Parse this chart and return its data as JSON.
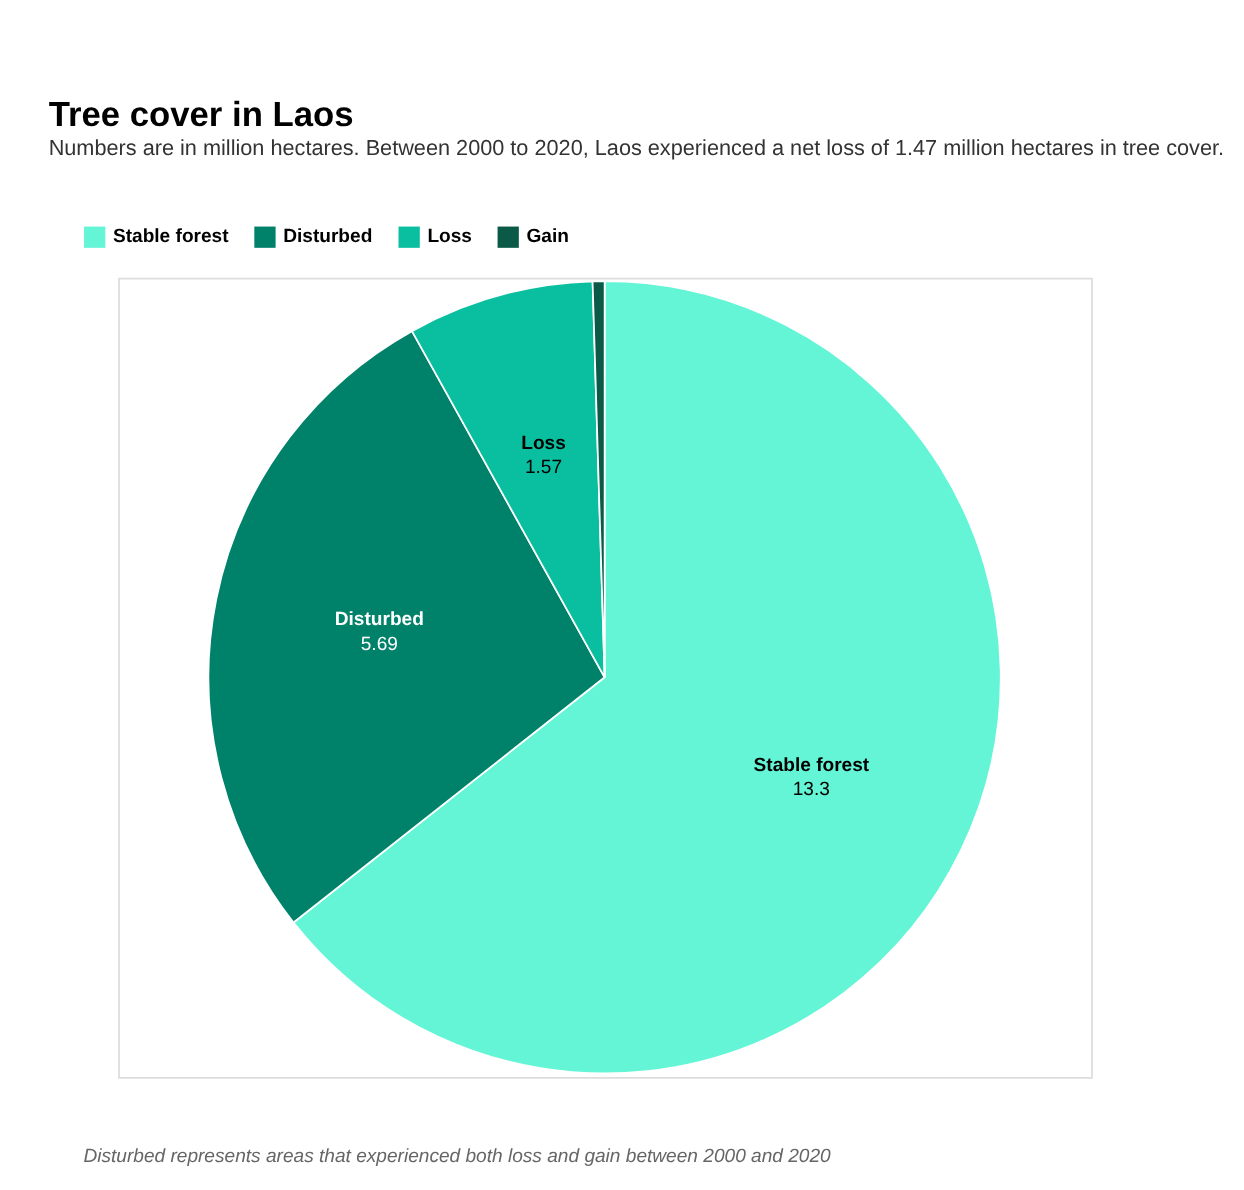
{
  "chart_data": {
    "type": "pie",
    "title": "Tree cover in Laos",
    "subtitle": "Numbers are in million hectares. Between 2000 to 2020, Laos experienced a net loss of 1.47 million hectares in tree cover.",
    "categories": [
      "Stable forest",
      "Disturbed",
      "Loss",
      "Gain"
    ],
    "values": [
      13.3,
      5.69,
      1.57,
      0.1
    ],
    "colors": [
      "#64f5d6",
      "#00826a",
      "#0abf9f",
      "#0a5a47"
    ],
    "value_labels": [
      "13.3",
      "5.69",
      "1.57",
      null
    ],
    "legend": "top left",
    "annotations": [
      "Disturbed represents areas that experienced both loss and gain between 2000 and 2020"
    ]
  }
}
